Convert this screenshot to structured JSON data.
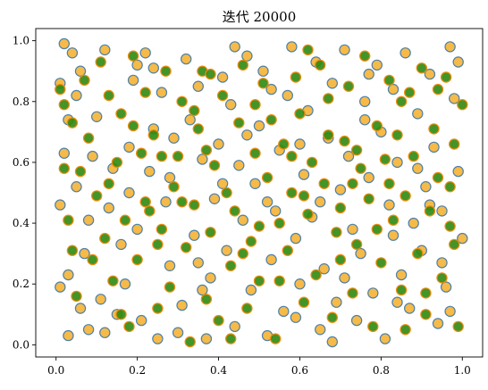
{
  "chart_data": {
    "type": "scatter",
    "title": "迭代 20000",
    "xlabel": "",
    "ylabel": "",
    "xlim": [
      -0.05,
      1.05
    ],
    "ylim": [
      -0.04,
      1.04
    ],
    "x_ticks": [
      "0.0",
      "0.2",
      "0.4",
      "0.6",
      "0.8",
      "1.0"
    ],
    "y_ticks": [
      "0.0",
      "0.2",
      "0.4",
      "0.6",
      "0.8",
      "1.0"
    ],
    "grid": false,
    "legend": "none",
    "colors": {
      "orange_face": "#f5b335",
      "orange_edge": "#4f81a6",
      "green_face": "#2e8a0e",
      "green_edge": "#f08a10"
    },
    "series": [
      {
        "style": "orange-filled-blue-edge",
        "points": [
          [
            0.02,
            0.99
          ],
          [
            0.04,
            0.96
          ],
          [
            0.01,
            0.86
          ],
          [
            0.02,
            0.63
          ],
          [
            0.01,
            0.46
          ],
          [
            0.05,
            0.52
          ],
          [
            0.03,
            0.23
          ],
          [
            0.01,
            0.19
          ],
          [
            0.06,
            0.12
          ],
          [
            0.03,
            0.03
          ],
          [
            0.08,
            0.05
          ],
          [
            0.07,
            0.3
          ],
          [
            0.1,
            0.75
          ],
          [
            0.06,
            0.9
          ],
          [
            0.12,
            0.97
          ],
          [
            0.13,
            0.45
          ],
          [
            0.09,
            0.62
          ],
          [
            0.15,
            0.1
          ],
          [
            0.17,
            0.2
          ],
          [
            0.16,
            0.33
          ],
          [
            0.19,
            0.87
          ],
          [
            0.18,
            0.65
          ],
          [
            0.21,
            0.08
          ],
          [
            0.2,
            0.38
          ],
          [
            0.22,
            0.96
          ],
          [
            0.24,
            0.91
          ],
          [
            0.23,
            0.57
          ],
          [
            0.26,
            0.83
          ],
          [
            0.27,
            0.47
          ],
          [
            0.28,
            0.26
          ],
          [
            0.25,
            0.02
          ],
          [
            0.29,
            0.68
          ],
          [
            0.32,
            0.94
          ],
          [
            0.33,
            0.74
          ],
          [
            0.31,
            0.13
          ],
          [
            0.34,
            0.36
          ],
          [
            0.36,
            0.61
          ],
          [
            0.35,
            0.85
          ],
          [
            0.37,
            0.02
          ],
          [
            0.39,
            0.48
          ],
          [
            0.38,
            0.22
          ],
          [
            0.41,
            0.88
          ],
          [
            0.4,
            0.66
          ],
          [
            0.42,
            0.31
          ],
          [
            0.44,
            0.06
          ],
          [
            0.43,
            0.79
          ],
          [
            0.45,
            0.59
          ],
          [
            0.47,
            0.95
          ],
          [
            0.46,
            0.41
          ],
          [
            0.48,
            0.18
          ],
          [
            0.5,
            0.72
          ],
          [
            0.49,
            0.53
          ],
          [
            0.52,
            0.03
          ],
          [
            0.51,
            0.9
          ],
          [
            0.53,
            0.28
          ],
          [
            0.55,
            0.64
          ],
          [
            0.54,
            0.44
          ],
          [
            0.56,
            0.11
          ],
          [
            0.58,
            0.98
          ],
          [
            0.57,
            0.82
          ],
          [
            0.59,
            0.35
          ],
          [
            0.61,
            0.56
          ],
          [
            0.6,
            0.2
          ],
          [
            0.62,
            0.77
          ],
          [
            0.64,
            0.93
          ],
          [
            0.63,
            0.42
          ],
          [
            0.65,
            0.05
          ],
          [
            0.67,
            0.68
          ],
          [
            0.66,
            0.25
          ],
          [
            0.68,
            0.86
          ],
          [
            0.7,
            0.51
          ],
          [
            0.69,
            0.14
          ],
          [
            0.71,
            0.97
          ],
          [
            0.73,
            0.38
          ],
          [
            0.72,
            0.62
          ],
          [
            0.74,
            0.08
          ],
          [
            0.76,
            0.8
          ],
          [
            0.75,
            0.3
          ],
          [
            0.77,
            0.55
          ],
          [
            0.79,
            0.92
          ],
          [
            0.78,
            0.17
          ],
          [
            0.8,
            0.7
          ],
          [
            0.82,
            0.46
          ],
          [
            0.81,
            0.02
          ],
          [
            0.83,
            0.84
          ],
          [
            0.85,
            0.23
          ],
          [
            0.84,
            0.6
          ],
          [
            0.86,
            0.96
          ],
          [
            0.88,
            0.4
          ],
          [
            0.87,
            0.12
          ],
          [
            0.89,
            0.76
          ],
          [
            0.91,
            0.52
          ],
          [
            0.9,
            0.31
          ],
          [
            0.92,
            0.89
          ],
          [
            0.94,
            0.07
          ],
          [
            0.93,
            0.65
          ],
          [
            0.95,
            0.44
          ],
          [
            0.97,
            0.98
          ],
          [
            0.96,
            0.19
          ],
          [
            0.98,
            0.81
          ],
          [
            0.99,
            0.57
          ],
          [
            1.0,
            0.35
          ],
          [
            0.97,
            0.11
          ],
          [
            0.99,
            0.93
          ],
          [
            0.03,
            0.74
          ],
          [
            0.08,
            0.41
          ],
          [
            0.14,
            0.58
          ],
          [
            0.11,
            0.15
          ],
          [
            0.18,
            0.5
          ],
          [
            0.24,
            0.71
          ],
          [
            0.3,
            0.04
          ],
          [
            0.35,
            0.27
          ],
          [
            0.41,
            0.53
          ],
          [
            0.47,
            0.69
          ],
          [
            0.53,
            0.84
          ],
          [
            0.59,
            0.09
          ],
          [
            0.65,
            0.47
          ],
          [
            0.71,
            0.22
          ],
          [
            0.77,
            0.89
          ],
          [
            0.83,
            0.36
          ],
          [
            0.89,
            0.58
          ],
          [
            0.95,
            0.27
          ],
          [
            0.05,
            0.82
          ],
          [
            0.12,
            0.04
          ],
          [
            0.2,
            0.92
          ],
          [
            0.28,
            0.55
          ],
          [
            0.36,
            0.18
          ],
          [
            0.44,
            0.98
          ],
          [
            0.52,
            0.47
          ],
          [
            0.6,
            0.66
          ],
          [
            0.68,
            0.01
          ],
          [
            0.76,
            0.74
          ],
          [
            0.84,
            0.14
          ],
          [
            0.92,
            0.46
          ]
        ]
      },
      {
        "style": "green-filled-orange-edge",
        "points": [
          [
            0.01,
            0.84
          ],
          [
            0.02,
            0.79
          ],
          [
            0.04,
            0.73
          ],
          [
            0.03,
            0.41
          ],
          [
            0.06,
            0.57
          ],
          [
            0.05,
            0.16
          ],
          [
            0.09,
            0.28
          ],
          [
            0.08,
            0.68
          ],
          [
            0.11,
            0.93
          ],
          [
            0.1,
            0.49
          ],
          [
            0.12,
            0.35
          ],
          [
            0.13,
            0.82
          ],
          [
            0.14,
            0.21
          ],
          [
            0.16,
            0.76
          ],
          [
            0.15,
            0.6
          ],
          [
            0.17,
            0.41
          ],
          [
            0.19,
            0.95
          ],
          [
            0.18,
            0.06
          ],
          [
            0.21,
            0.63
          ],
          [
            0.2,
            0.28
          ],
          [
            0.22,
            0.83
          ],
          [
            0.23,
            0.44
          ],
          [
            0.25,
            0.12
          ],
          [
            0.24,
            0.69
          ],
          [
            0.26,
            0.38
          ],
          [
            0.27,
            0.9
          ],
          [
            0.29,
            0.52
          ],
          [
            0.28,
            0.19
          ],
          [
            0.31,
            0.8
          ],
          [
            0.3,
            0.62
          ],
          [
            0.32,
            0.32
          ],
          [
            0.33,
            0.01
          ],
          [
            0.35,
            0.71
          ],
          [
            0.34,
            0.46
          ],
          [
            0.36,
            0.9
          ],
          [
            0.37,
            0.15
          ],
          [
            0.39,
            0.59
          ],
          [
            0.38,
            0.37
          ],
          [
            0.41,
            0.82
          ],
          [
            0.4,
            0.08
          ],
          [
            0.42,
            0.5
          ],
          [
            0.43,
            0.26
          ],
          [
            0.45,
            0.73
          ],
          [
            0.44,
            0.44
          ],
          [
            0.46,
            0.92
          ],
          [
            0.47,
            0.12
          ],
          [
            0.49,
            0.63
          ],
          [
            0.48,
            0.34
          ],
          [
            0.51,
            0.86
          ],
          [
            0.5,
            0.21
          ],
          [
            0.52,
            0.55
          ],
          [
            0.53,
            0.74
          ],
          [
            0.55,
            0.4
          ],
          [
            0.54,
            0.02
          ],
          [
            0.56,
            0.66
          ],
          [
            0.57,
            0.31
          ],
          [
            0.59,
            0.88
          ],
          [
            0.58,
            0.5
          ],
          [
            0.61,
            0.14
          ],
          [
            0.6,
            0.76
          ],
          [
            0.62,
            0.43
          ],
          [
            0.63,
            0.6
          ],
          [
            0.65,
            0.92
          ],
          [
            0.64,
            0.23
          ],
          [
            0.66,
            0.53
          ],
          [
            0.67,
            0.81
          ],
          [
            0.69,
            0.37
          ],
          [
            0.68,
            0.09
          ],
          [
            0.71,
            0.67
          ],
          [
            0.7,
            0.45
          ],
          [
            0.72,
            0.85
          ],
          [
            0.73,
            0.17
          ],
          [
            0.75,
            0.58
          ],
          [
            0.74,
            0.33
          ],
          [
            0.76,
            0.95
          ],
          [
            0.77,
            0.48
          ],
          [
            0.79,
            0.72
          ],
          [
            0.78,
            0.06
          ],
          [
            0.81,
            0.61
          ],
          [
            0.8,
            0.27
          ],
          [
            0.82,
            0.87
          ],
          [
            0.83,
            0.41
          ],
          [
            0.85,
            0.18
          ],
          [
            0.84,
            0.69
          ],
          [
            0.86,
            0.49
          ],
          [
            0.87,
            0.83
          ],
          [
            0.89,
            0.3
          ],
          [
            0.88,
            0.62
          ],
          [
            0.91,
            0.1
          ],
          [
            0.9,
            0.91
          ],
          [
            0.92,
            0.44
          ],
          [
            0.93,
            0.71
          ],
          [
            0.95,
            0.22
          ],
          [
            0.94,
            0.55
          ],
          [
            0.96,
            0.88
          ],
          [
            0.97,
            0.39
          ],
          [
            0.99,
            0.06
          ],
          [
            0.98,
            0.66
          ],
          [
            1.0,
            0.79
          ],
          [
            0.07,
            0.87
          ],
          [
            0.13,
            0.53
          ],
          [
            0.19,
            0.72
          ],
          [
            0.25,
            0.33
          ],
          [
            0.31,
            0.47
          ],
          [
            0.37,
            0.64
          ],
          [
            0.43,
            0.02
          ],
          [
            0.49,
            0.79
          ],
          [
            0.55,
            0.21
          ],
          [
            0.61,
            0.49
          ],
          [
            0.67,
            0.69
          ],
          [
            0.73,
            0.53
          ],
          [
            0.79,
            0.38
          ],
          [
            0.85,
            0.8
          ],
          [
            0.91,
            0.17
          ],
          [
            0.97,
            0.52
          ],
          [
            0.04,
            0.31
          ],
          [
            0.16,
            0.1
          ],
          [
            0.22,
            0.47
          ],
          [
            0.34,
            0.77
          ],
          [
            0.46,
            0.3
          ],
          [
            0.58,
            0.62
          ],
          [
            0.7,
            0.28
          ],
          [
            0.82,
            0.53
          ],
          [
            0.94,
            0.84
          ],
          [
            0.02,
            0.58
          ],
          [
            0.26,
            0.62
          ],
          [
            0.38,
            0.89
          ],
          [
            0.5,
            0.39
          ],
          [
            0.62,
            0.97
          ],
          [
            0.74,
            0.64
          ],
          [
            0.86,
            0.05
          ],
          [
            0.98,
            0.33
          ]
        ]
      }
    ]
  }
}
